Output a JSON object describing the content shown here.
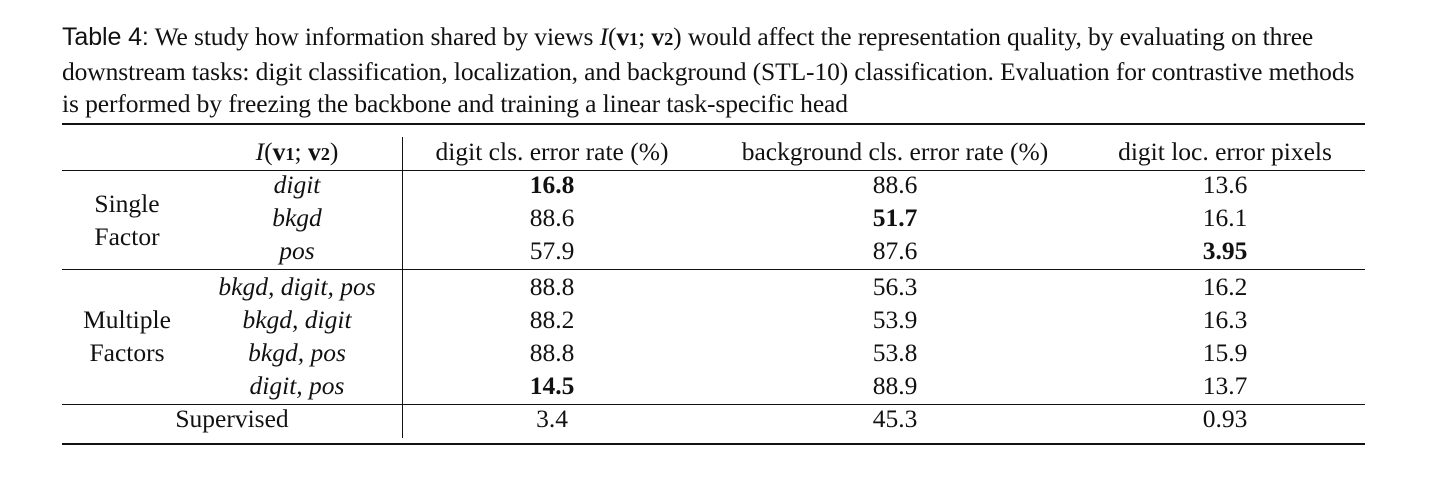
{
  "caption": {
    "label": "Table 4:",
    "text_part1": " We study how information shared by views ",
    "math": {
      "fn": "I",
      "open": "(",
      "v1": "v",
      "sub1": "1",
      "sep": ";",
      "v2": "v",
      "sub2": "2",
      "close": ")"
    },
    "text_part2": " would affect the representation quality, by evaluating on three downstream tasks: digit classification, localization, and background (STL-10) classification. Evaluation for contrastive methods is performed by freezing the backbone and training a linear task-specific head"
  },
  "table": {
    "header": {
      "col_info": {
        "fn": "I",
        "open": "(",
        "v1": "v",
        "sub1": "1",
        "sep": ";",
        "v2": "v",
        "sub2": "2",
        "close": ")"
      },
      "col_digit_cls": "digit cls. error rate (%)",
      "col_bkgd_cls": "background cls. error rate (%)",
      "col_digit_loc": "digit loc. error pixels"
    },
    "groups": [
      {
        "label_line1": "Single",
        "label_line2": "Factor",
        "rows": [
          {
            "factor": "digit",
            "digit_cls": "16.8",
            "bkgd_cls": "88.6",
            "digit_loc": "13.6"
          },
          {
            "factor": "bkgd",
            "digit_cls": "88.6",
            "bkgd_cls": "51.7",
            "digit_loc": "16.1"
          },
          {
            "factor": "pos",
            "digit_cls": "57.9",
            "bkgd_cls": "87.6",
            "digit_loc": "3.95"
          }
        ]
      },
      {
        "label_line1": "Multiple",
        "label_line2": "Factors",
        "rows": [
          {
            "factor": "bkgd, digit, pos",
            "digit_cls": "88.8",
            "bkgd_cls": "56.3",
            "digit_loc": "16.2"
          },
          {
            "factor": "bkgd, digit",
            "digit_cls": "88.2",
            "bkgd_cls": "53.9",
            "digit_loc": "16.3"
          },
          {
            "factor": "bkgd, pos",
            "digit_cls": "88.8",
            "bkgd_cls": "53.8",
            "digit_loc": "15.9"
          },
          {
            "factor": "digit, pos",
            "digit_cls": "14.5",
            "bkgd_cls": "88.9",
            "digit_loc": "13.7"
          }
        ]
      }
    ],
    "supervised": {
      "label": "Supervised",
      "digit_cls": "3.4",
      "bkgd_cls": "45.3",
      "digit_loc": "0.93"
    }
  }
}
